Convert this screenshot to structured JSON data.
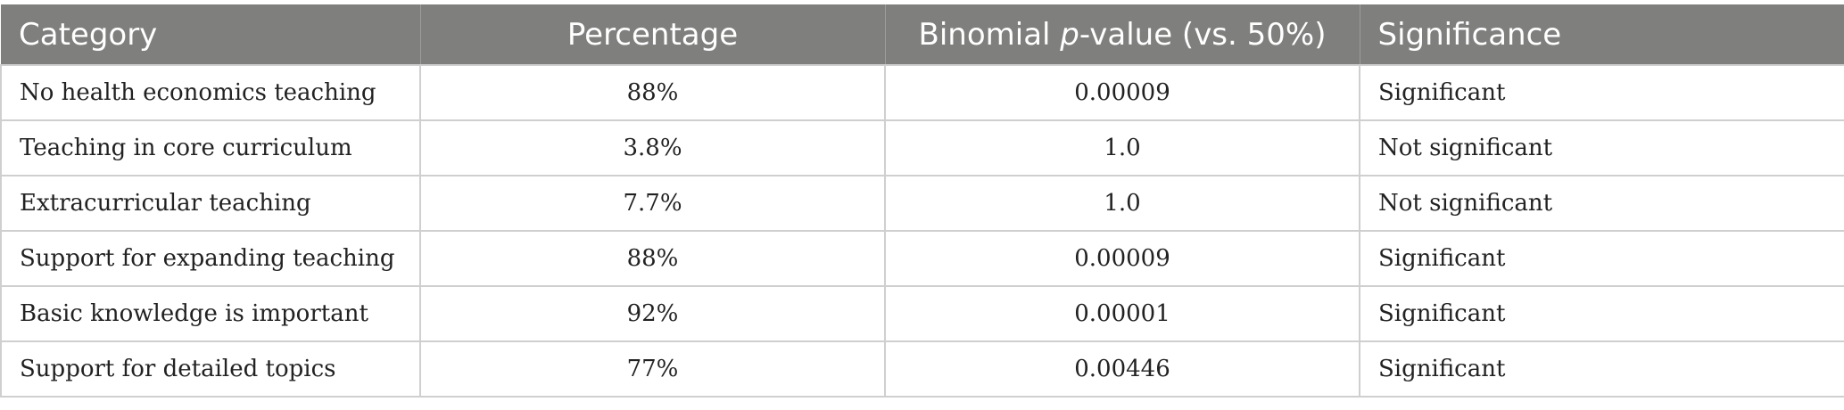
{
  "table": {
    "headers": {
      "category": "Category",
      "percentage": "Percentage",
      "pvalue_prefix": "Binomial ",
      "pvalue_italic": "p",
      "pvalue_suffix": "-value (vs. 50%)",
      "significance": "Significance"
    },
    "rows": [
      {
        "category": "No health economics teaching",
        "percentage": "88%",
        "pvalue": "0.00009",
        "significance": "Significant"
      },
      {
        "category": "Teaching in core curriculum",
        "percentage": "3.8%",
        "pvalue": "1.0",
        "significance": "Not significant"
      },
      {
        "category": "Extracurricular teaching",
        "percentage": "7.7%",
        "pvalue": "1.0",
        "significance": "Not significant"
      },
      {
        "category": "Support for expanding teaching",
        "percentage": "88%",
        "pvalue": "0.00009",
        "significance": "Significant"
      },
      {
        "category": "Basic knowledge is important",
        "percentage": "92%",
        "pvalue": "0.00001",
        "significance": "Significant"
      },
      {
        "category": "Support for detailed topics",
        "percentage": "77%",
        "pvalue": "0.00446",
        "significance": "Significant"
      }
    ]
  }
}
